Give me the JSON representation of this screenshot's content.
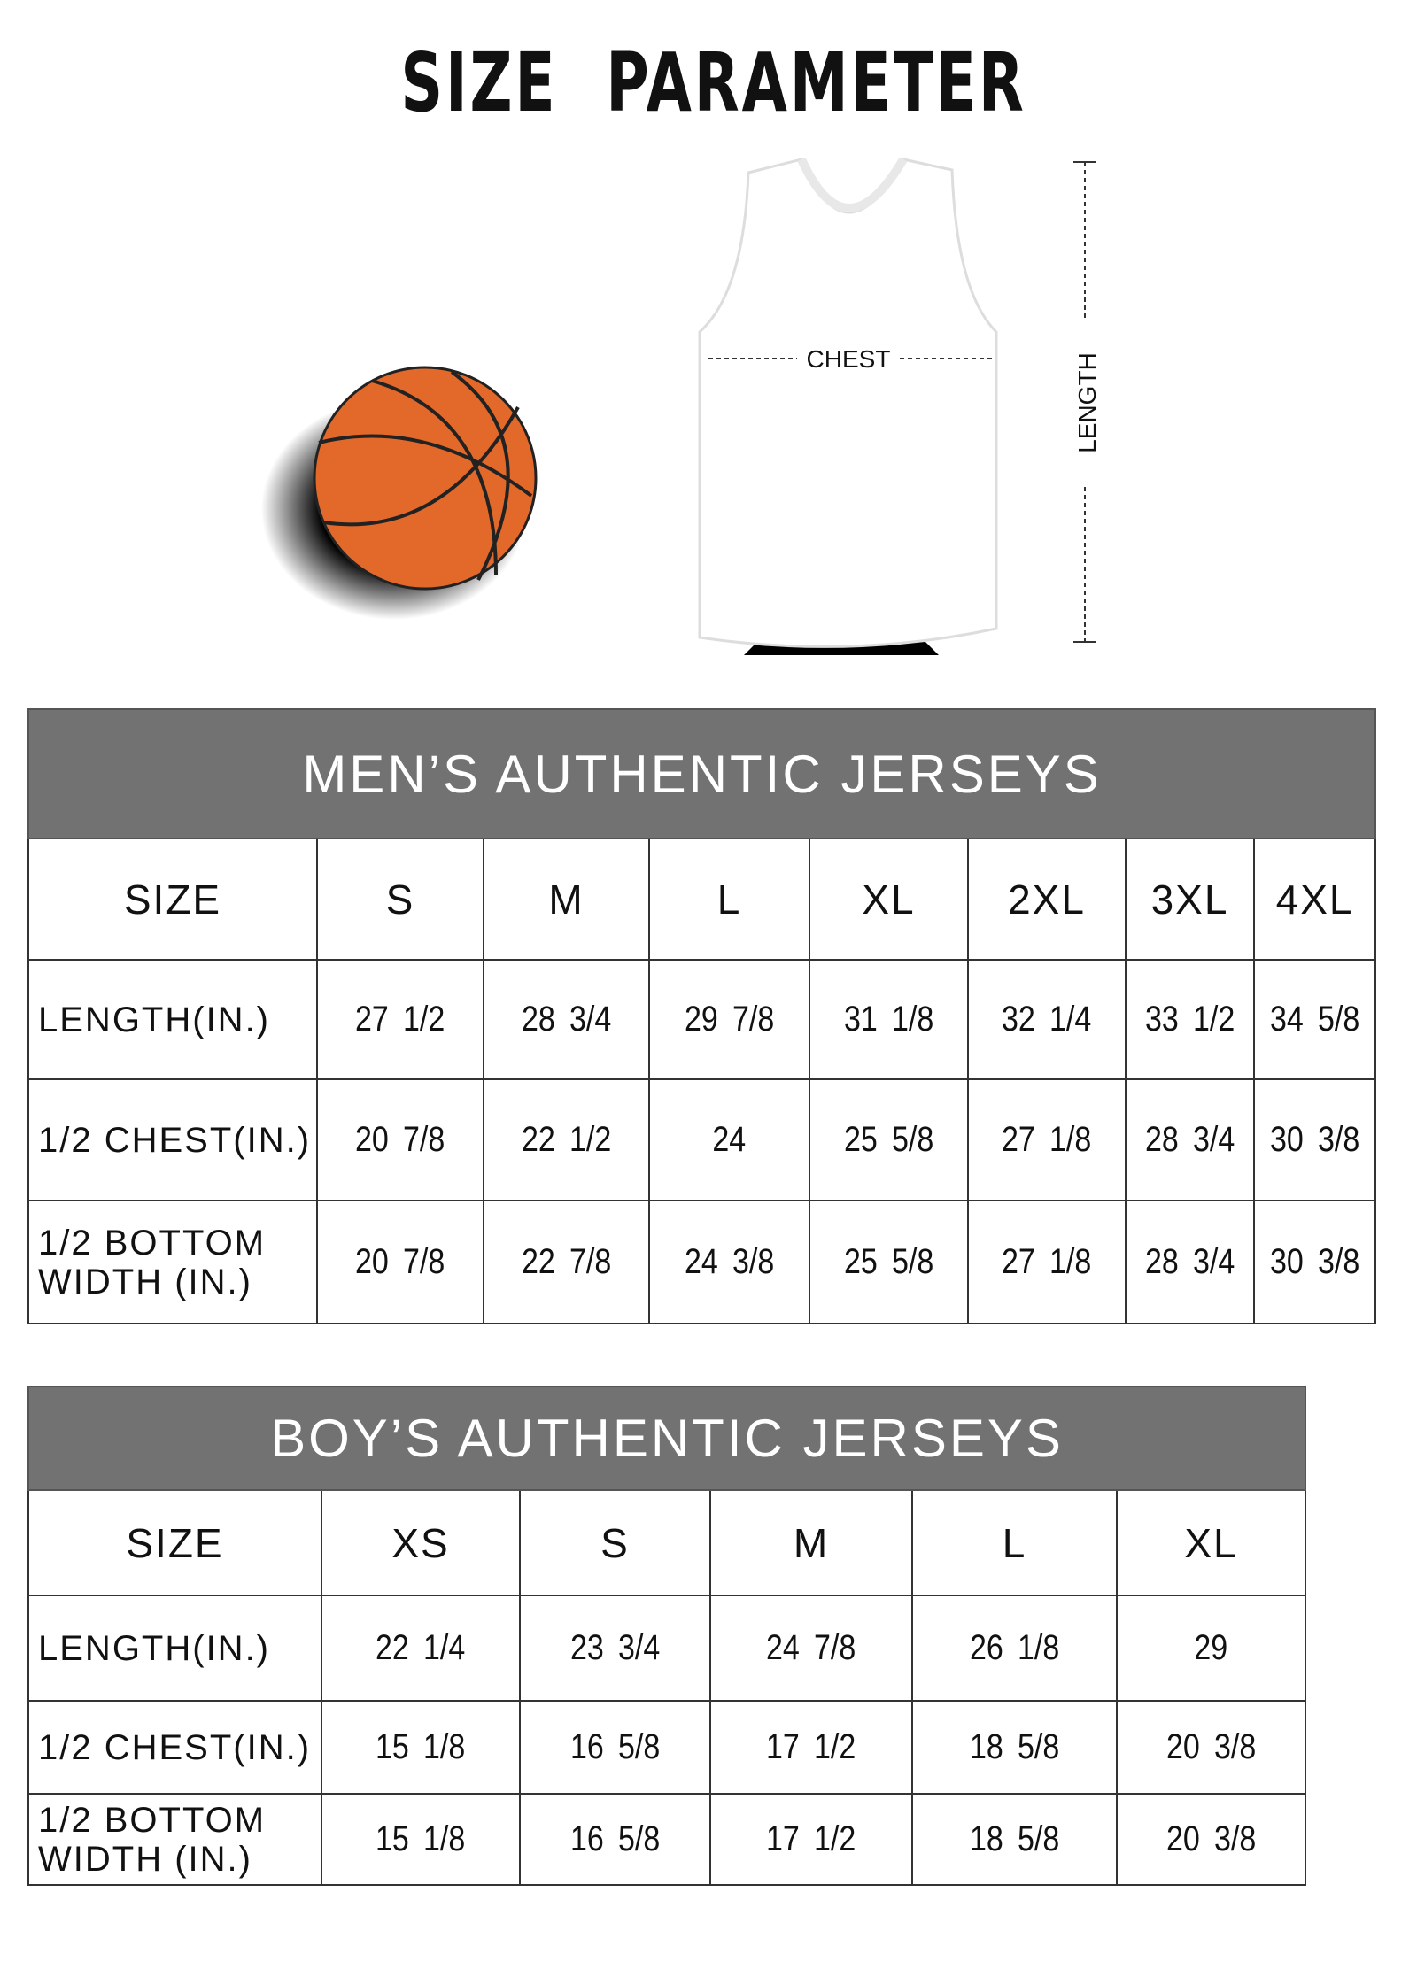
{
  "title": "SIZE PARAMETER",
  "diagram": {
    "chest_label": "CHEST",
    "length_label": "LENGTH"
  },
  "men": {
    "heading": "MEN’S AUTHENTIC JERSEYS",
    "size_label": "SIZE",
    "sizes": [
      "S",
      "M",
      "L",
      "XL",
      "2XL",
      "3XL",
      "4XL"
    ],
    "rows": [
      {
        "label": "LENGTH(IN.)",
        "values": [
          "27 1/2",
          "28 3/4",
          "29 7/8",
          "31 1/8",
          "32 1/4",
          "33 1/2",
          "34 5/8"
        ]
      },
      {
        "label": "1/2 CHEST(IN.)",
        "values": [
          "20 7/8",
          "22 1/2",
          "24",
          "25 5/8",
          "27 1/8",
          "28 3/4",
          "30 3/8"
        ]
      },
      {
        "label": "1/2 BOTTOM WIDTH (IN.)",
        "values": [
          "20 7/8",
          "22 7/8",
          "24 3/8",
          "25 5/8",
          "27 1/8",
          "28 3/4",
          "30 3/8"
        ]
      }
    ]
  },
  "boys": {
    "heading": "BOY’S AUTHENTIC JERSEYS",
    "size_label": "SIZE",
    "sizes": [
      "XS",
      "S",
      "M",
      "L",
      "XL"
    ],
    "rows": [
      {
        "label": "LENGTH(IN.)",
        "values": [
          "22 1/4",
          "23 3/4",
          "24 7/8",
          "26 1/8",
          "29"
        ]
      },
      {
        "label": "1/2 CHEST(IN.)",
        "values": [
          "15 1/8",
          "16 5/8",
          "17 1/2",
          "18 5/8",
          "20 3/8"
        ]
      },
      {
        "label": "1/2 BOTTOM WIDTH (IN.)",
        "values": [
          "15 1/8",
          "16 5/8",
          "17 1/2",
          "18 5/8",
          "20 3/8"
        ]
      }
    ]
  },
  "colors": {
    "header_bg": "#727272",
    "ball": "#e3692a"
  }
}
